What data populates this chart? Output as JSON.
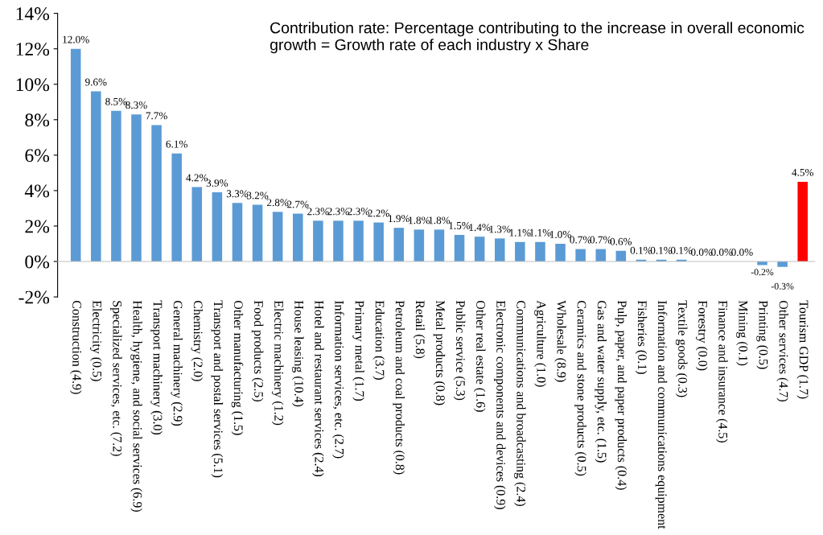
{
  "chart_data": {
    "type": "bar",
    "categories": [
      "Construction (4.9)",
      "Electricity (0.5)",
      "Specialized services, etc. (7.2)",
      "Health, hygiene, and social services (6.9)",
      "Transport machinery (3.0)",
      "General machinery (2.9)",
      "Chemistry (2.0)",
      "Transport and postal services (5.1)",
      "Other manufacturing (1.5)",
      "Food products (2.5)",
      "Electric machinery (1.2)",
      "House leasing (10.4)",
      "Hotel and restaurant services (2.4)",
      "Information services, etc. (2.7)",
      "Primary metal (1.7)",
      "Education (3.7)",
      "Petroleum and coal products (0.8)",
      "Retail (5.8)",
      "Metal products (0.8)",
      "Public service (5.3)",
      "Other real estate (1.6)",
      "Electronic components and devices (0.9)",
      "Communications and broadcasting (2.4)",
      "Agriculture (1.0)",
      "Wholesale (8.9)",
      "Ceramics and stone products (0.5)",
      "Gas and water supply, etc. (1.5)",
      "Pulp, paper, and paper products (0.4)",
      "Fisheries (0.1)",
      "Information and communications equipment",
      "Textile goods (0.3)",
      "Forestry (0.0)",
      "Finance and insurance (4.5)",
      "Mining (0.1)",
      "Printing (0.5)",
      "Other services (4.7)",
      "Tourism GDP (1.7)"
    ],
    "values": [
      12.0,
      9.6,
      8.5,
      8.3,
      7.7,
      6.1,
      4.2,
      3.9,
      3.3,
      3.2,
      2.8,
      2.7,
      2.3,
      2.3,
      2.3,
      2.2,
      1.9,
      1.8,
      1.8,
      1.5,
      1.4,
      1.3,
      1.1,
      1.1,
      1.0,
      0.7,
      0.7,
      0.6,
      0.1,
      0.1,
      0.1,
      0.0,
      0.0,
      0.0,
      -0.2,
      -0.3,
      4.5
    ],
    "value_labels": [
      "12.0%",
      "9.6%",
      "8.5%",
      "8.3%",
      "7.7%",
      "6.1%",
      "4.2%",
      "3.9%",
      "3.3%",
      "3.2%",
      "2.8%",
      "2.7%",
      "2.3%",
      "2.3%",
      "2.3%",
      "2.2%",
      "1.9%",
      "1.8%",
      "1.8%",
      "1.5%",
      "1.4%",
      "1.3%",
      "1.1%",
      "1.1%",
      "1.0%",
      "0.7%",
      "0.7%",
      "0.6%",
      "0.1%",
      "0.1%",
      "0.1%",
      "0.0%",
      "0.0%",
      "0.0%",
      "-0.2%",
      "-0.3%",
      "4.5%"
    ],
    "colors": [
      "#5b9bd5",
      "#5b9bd5",
      "#5b9bd5",
      "#5b9bd5",
      "#5b9bd5",
      "#5b9bd5",
      "#5b9bd5",
      "#5b9bd5",
      "#5b9bd5",
      "#5b9bd5",
      "#5b9bd5",
      "#5b9bd5",
      "#5b9bd5",
      "#5b9bd5",
      "#5b9bd5",
      "#5b9bd5",
      "#5b9bd5",
      "#5b9bd5",
      "#5b9bd5",
      "#5b9bd5",
      "#5b9bd5",
      "#5b9bd5",
      "#5b9bd5",
      "#5b9bd5",
      "#5b9bd5",
      "#5b9bd5",
      "#5b9bd5",
      "#5b9bd5",
      "#5b9bd5",
      "#5b9bd5",
      "#5b9bd5",
      "#5b9bd5",
      "#5b9bd5",
      "#5b9bd5",
      "#5b9bd5",
      "#5b9bd5",
      "#ff0000"
    ],
    "ylim": [
      -2,
      14
    ],
    "yticks": [
      {
        "value": -2,
        "label": "-2%"
      },
      {
        "value": 0,
        "label": "0%"
      },
      {
        "value": 2,
        "label": "2%"
      },
      {
        "value": 4,
        "label": "4%"
      },
      {
        "value": 6,
        "label": "6%"
      },
      {
        "value": 8,
        "label": "8%"
      },
      {
        "value": 10,
        "label": "10%"
      },
      {
        "value": 12,
        "label": "12%"
      },
      {
        "value": 14,
        "label": "14%"
      }
    ],
    "annotations": [
      "Contribution rate: Percentage contributing to the increase in overall economic growth = Growth rate of each industry x Share"
    ],
    "legend": false
  }
}
